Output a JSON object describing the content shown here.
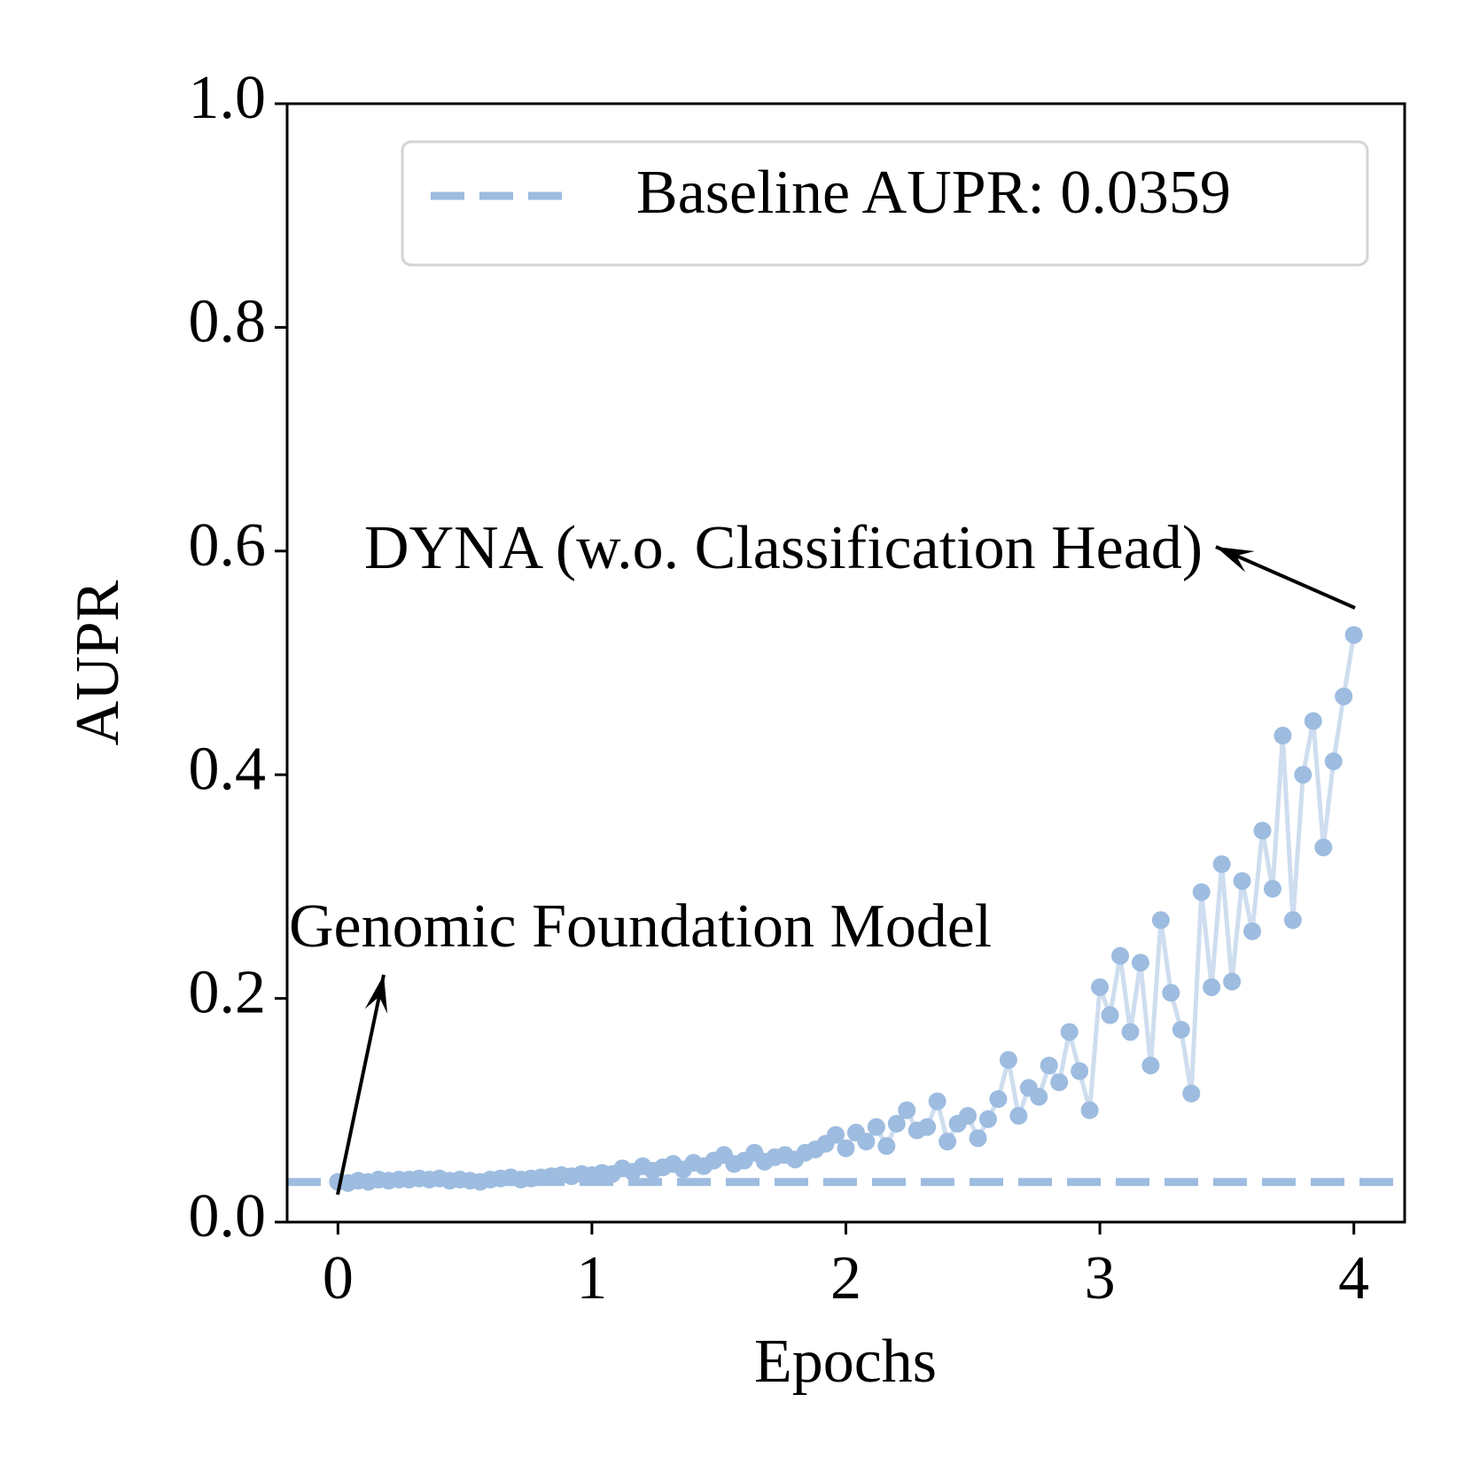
{
  "chart_data": {
    "type": "line",
    "x_label": "Epochs",
    "y_label": "AUPR",
    "x": [
      0,
      0.04,
      0.08,
      0.12,
      0.16,
      0.2,
      0.24,
      0.28,
      0.32,
      0.36,
      0.4,
      0.44,
      0.48,
      0.52,
      0.56,
      0.6,
      0.64,
      0.68,
      0.72,
      0.76,
      0.8,
      0.84,
      0.88,
      0.92,
      0.96,
      1.0,
      1.04,
      1.08,
      1.12,
      1.16,
      1.2,
      1.24,
      1.28,
      1.32,
      1.36,
      1.4,
      1.44,
      1.48,
      1.52,
      1.56,
      1.6,
      1.64,
      1.68,
      1.72,
      1.76,
      1.8,
      1.84,
      1.88,
      1.92,
      1.96,
      2.0,
      2.04,
      2.08,
      2.12,
      2.16,
      2.2,
      2.24,
      2.28,
      2.32,
      2.36,
      2.4,
      2.44,
      2.48,
      2.52,
      2.56,
      2.6,
      2.64,
      2.68,
      2.72,
      2.76,
      2.8,
      2.84,
      2.88,
      2.92,
      2.96,
      3.0,
      3.04,
      3.08,
      3.12,
      3.16,
      3.2,
      3.24,
      3.28,
      3.32,
      3.36,
      3.4,
      3.44,
      3.48,
      3.52,
      3.56,
      3.6,
      3.64,
      3.68,
      3.72,
      3.76,
      3.8,
      3.84,
      3.88,
      3.92,
      3.96,
      4.0
    ],
    "values": [
      0.036,
      0.035,
      0.037,
      0.036,
      0.038,
      0.037,
      0.038,
      0.038,
      0.039,
      0.038,
      0.039,
      0.037,
      0.038,
      0.037,
      0.036,
      0.038,
      0.039,
      0.04,
      0.038,
      0.039,
      0.04,
      0.041,
      0.042,
      0.041,
      0.043,
      0.042,
      0.044,
      0.043,
      0.048,
      0.045,
      0.05,
      0.046,
      0.049,
      0.052,
      0.047,
      0.053,
      0.05,
      0.055,
      0.06,
      0.052,
      0.055,
      0.062,
      0.054,
      0.058,
      0.06,
      0.056,
      0.062,
      0.065,
      0.07,
      0.078,
      0.066,
      0.08,
      0.072,
      0.085,
      0.068,
      0.088,
      0.1,
      0.082,
      0.085,
      0.108,
      0.072,
      0.088,
      0.095,
      0.075,
      0.092,
      0.11,
      0.145,
      0.095,
      0.12,
      0.112,
      0.14,
      0.125,
      0.17,
      0.135,
      0.1,
      0.21,
      0.185,
      0.238,
      0.17,
      0.232,
      0.14,
      0.27,
      0.205,
      0.172,
      0.115,
      0.295,
      0.21,
      0.32,
      0.215,
      0.305,
      0.26,
      0.35,
      0.298,
      0.435,
      0.27,
      0.4,
      0.448,
      0.335,
      0.412,
      0.47,
      0.525
    ],
    "color": "#9dbce0",
    "xlim": [
      -0.2,
      4.2
    ],
    "ylim": [
      0,
      1.0
    ],
    "xticks": [
      0,
      1,
      2,
      3,
      4
    ],
    "yticks": [
      {
        "value": 0,
        "label": "0.0"
      },
      {
        "value": 0.2,
        "label": "0.2"
      },
      {
        "value": 0.4,
        "label": "0.4"
      },
      {
        "value": 0.6,
        "label": "0.6"
      },
      {
        "value": 0.8,
        "label": "0.8"
      },
      {
        "value": 1.0,
        "label": "1.0"
      }
    ],
    "baseline": {
      "value": 0.0359,
      "label": "Baseline AUPR: 0.0359",
      "color": "#9dbce0"
    },
    "legend": "upper right",
    "annotations": [
      {
        "text": "Genomic Foundation Model"
      },
      {
        "text": "DYNA (w.o. Classification Head)"
      }
    ]
  }
}
